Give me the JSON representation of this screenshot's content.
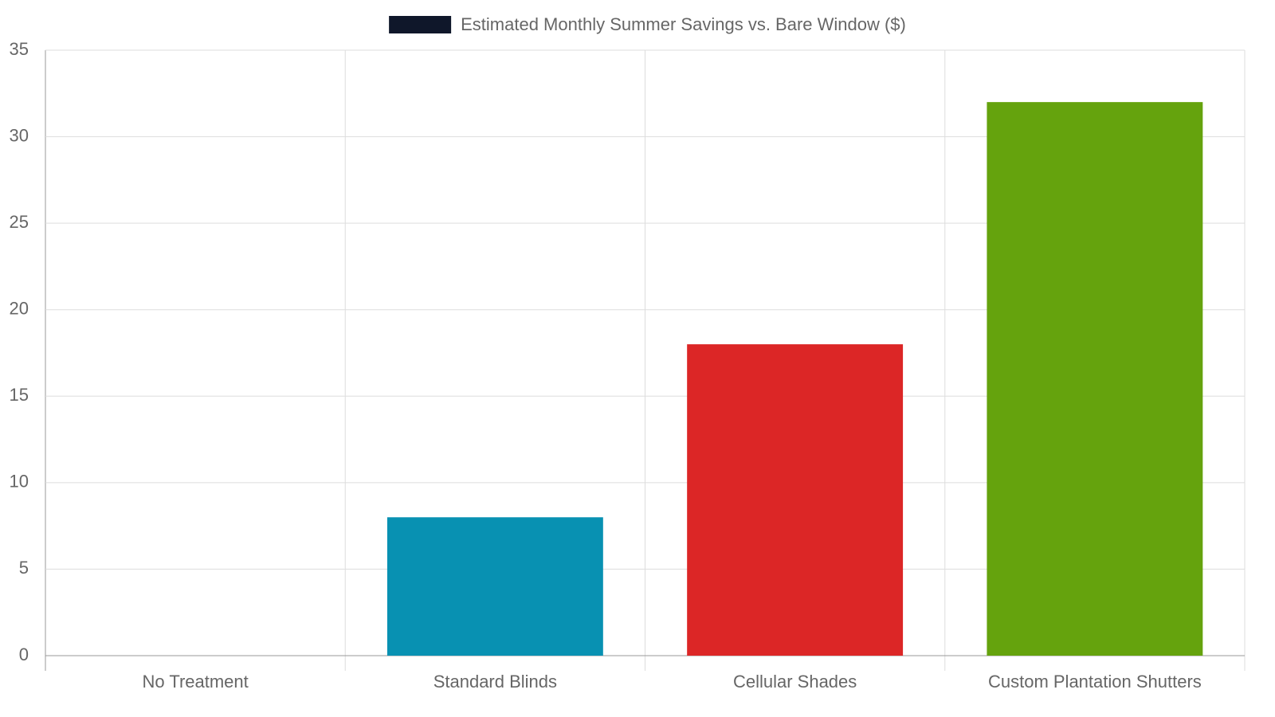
{
  "chart_data": {
    "type": "bar",
    "categories": [
      "No Treatment",
      "Standard Blinds",
      "Cellular Shades",
      "Custom Plantation Shutters"
    ],
    "series": [
      {
        "name": "Estimated Monthly Summer Savings vs. Bare Window ($)",
        "color": "#0f172a",
        "values": [
          0,
          8,
          18,
          32
        ],
        "bar_colors": [
          "#64748b",
          "#0891b2",
          "#dc2626",
          "#65a30d"
        ]
      }
    ],
    "ylim": [
      0,
      35
    ],
    "yticks": [
      0,
      5,
      10,
      15,
      20,
      25,
      30,
      35
    ],
    "grid": true,
    "legend": "top"
  }
}
